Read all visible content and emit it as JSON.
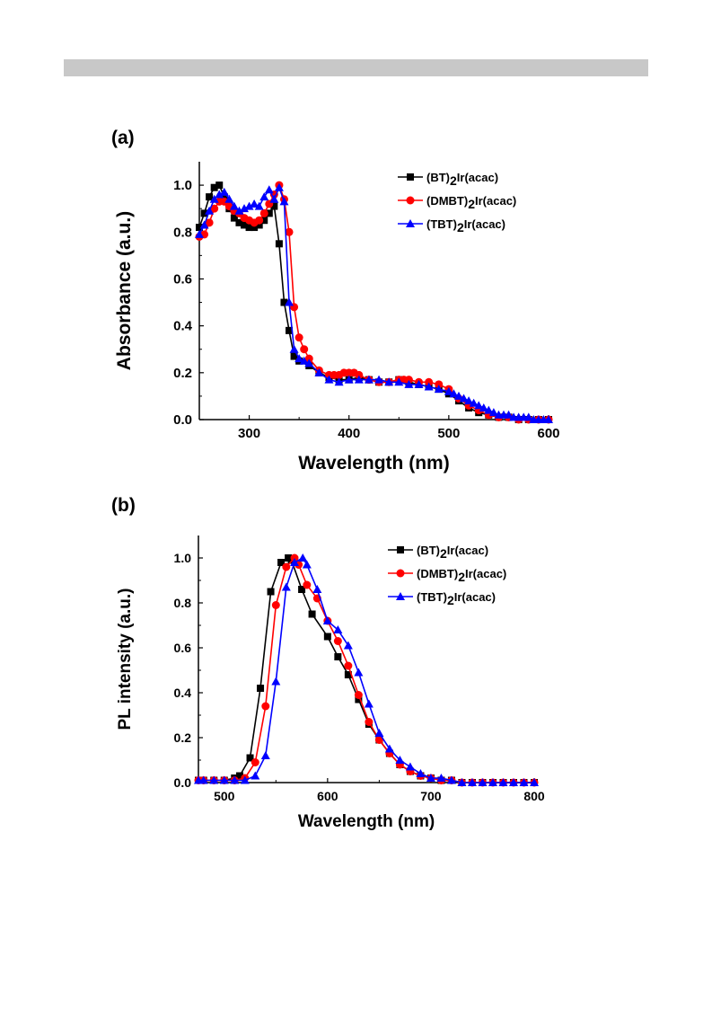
{
  "panels": [
    {
      "label": "(a)",
      "chart_data": {
        "type": "line",
        "xlabel": "Wavelength (nm)",
        "ylabel": "Absorbance (a.u.)",
        "xlim": [
          250,
          600
        ],
        "ylim": [
          0.0,
          1.1
        ],
        "xticks": [
          300,
          400,
          500,
          600
        ],
        "yticks": [
          0.0,
          0.2,
          0.4,
          0.6,
          0.8,
          1.0
        ],
        "xtick_labels": [
          "300",
          "400",
          "500",
          "600"
        ],
        "ytick_labels": [
          "0.0",
          "0.2",
          "0.4",
          "0.6",
          "0.8",
          "1.0"
        ],
        "grid": false,
        "legend": "top-right",
        "series": [
          {
            "name_prefix": "(BT)",
            "name_sub": "2",
            "name_suffix": "Ir(acac)",
            "color": "#000000",
            "marker": "square",
            "x": [
              250,
              255,
              260,
              265,
              270,
              275,
              280,
              285,
              290,
              295,
              300,
              305,
              310,
              315,
              320,
              325,
              330,
              335,
              340,
              345,
              350,
              360,
              370,
              380,
              390,
              400,
              410,
              420,
              430,
              440,
              450,
              460,
              470,
              480,
              490,
              500,
              510,
              520,
              530,
              540,
              550,
              560,
              570,
              580,
              590,
              600
            ],
            "y": [
              0.82,
              0.88,
              0.95,
              0.99,
              1.0,
              0.95,
              0.9,
              0.86,
              0.84,
              0.83,
              0.82,
              0.82,
              0.83,
              0.85,
              0.88,
              0.91,
              0.75,
              0.5,
              0.38,
              0.27,
              0.25,
              0.23,
              0.2,
              0.18,
              0.17,
              0.17,
              0.18,
              0.17,
              0.16,
              0.16,
              0.17,
              0.16,
              0.15,
              0.14,
              0.13,
              0.11,
              0.08,
              0.05,
              0.03,
              0.02,
              0.01,
              0.01,
              0.0,
              0.0,
              0.0,
              0.0
            ]
          },
          {
            "name_prefix": "(DMBT)",
            "name_sub": "2",
            "name_suffix": "Ir(acac)",
            "color": "#ff0000",
            "marker": "circle",
            "x": [
              250,
              255,
              260,
              265,
              270,
              275,
              280,
              285,
              290,
              295,
              300,
              305,
              310,
              315,
              320,
              325,
              330,
              335,
              340,
              345,
              350,
              355,
              360,
              370,
              380,
              385,
              390,
              395,
              400,
              405,
              410,
              420,
              430,
              440,
              450,
              455,
              460,
              470,
              480,
              490,
              500,
              510,
              520,
              530,
              540,
              550,
              560,
              570,
              580,
              590,
              600
            ],
            "y": [
              0.78,
              0.79,
              0.84,
              0.9,
              0.93,
              0.93,
              0.91,
              0.89,
              0.88,
              0.86,
              0.85,
              0.84,
              0.85,
              0.88,
              0.92,
              0.96,
              1.0,
              0.94,
              0.8,
              0.48,
              0.35,
              0.3,
              0.26,
              0.21,
              0.19,
              0.19,
              0.19,
              0.2,
              0.2,
              0.2,
              0.19,
              0.17,
              0.16,
              0.16,
              0.17,
              0.17,
              0.17,
              0.16,
              0.16,
              0.15,
              0.13,
              0.09,
              0.06,
              0.04,
              0.02,
              0.01,
              0.01,
              0.0,
              0.0,
              0.0,
              0.0
            ]
          },
          {
            "name_prefix": "(TBT)",
            "name_sub": "2",
            "name_suffix": "Ir(acac)",
            "color": "#0000ff",
            "marker": "triangle",
            "x": [
              250,
              255,
              260,
              265,
              270,
              275,
              280,
              285,
              290,
              295,
              300,
              305,
              310,
              315,
              320,
              325,
              330,
              335,
              340,
              345,
              350,
              355,
              360,
              370,
              380,
              390,
              400,
              410,
              420,
              430,
              440,
              450,
              460,
              470,
              480,
              490,
              500,
              505,
              510,
              515,
              520,
              525,
              530,
              535,
              540,
              545,
              550,
              555,
              560,
              565,
              570,
              575,
              580,
              585,
              590,
              595,
              600
            ],
            "y": [
              0.79,
              0.83,
              0.89,
              0.94,
              0.96,
              0.97,
              0.94,
              0.91,
              0.89,
              0.9,
              0.91,
              0.92,
              0.91,
              0.95,
              0.98,
              0.94,
              0.99,
              0.93,
              0.5,
              0.3,
              0.26,
              0.25,
              0.24,
              0.2,
              0.17,
              0.16,
              0.17,
              0.17,
              0.17,
              0.17,
              0.16,
              0.16,
              0.15,
              0.15,
              0.14,
              0.13,
              0.12,
              0.11,
              0.1,
              0.09,
              0.08,
              0.07,
              0.06,
              0.05,
              0.04,
              0.03,
              0.02,
              0.02,
              0.02,
              0.01,
              0.01,
              0.01,
              0.01,
              0.0,
              0.0,
              0.0,
              0.0
            ]
          }
        ]
      }
    },
    {
      "label": "(b)",
      "chart_data": {
        "type": "line",
        "xlabel": "Wavelength (nm)",
        "ylabel": "PL intensity (a.u.)",
        "xlim": [
          475,
          800
        ],
        "ylim": [
          0.0,
          1.1
        ],
        "xticks": [
          500,
          600,
          700,
          800
        ],
        "yticks": [
          0.0,
          0.2,
          0.4,
          0.6,
          0.8,
          1.0
        ],
        "xtick_labels": [
          "500",
          "600",
          "700",
          "800"
        ],
        "ytick_labels": [
          "0.0",
          "0.2",
          "0.4",
          "0.6",
          "0.8",
          "1.0"
        ],
        "grid": false,
        "legend": "top-right",
        "series": [
          {
            "name_prefix": "(BT)",
            "name_sub": "2",
            "name_suffix": "Ir(acac)",
            "color": "#000000",
            "marker": "square",
            "x": [
              475,
              480,
              490,
              500,
              510,
              515,
              525,
              535,
              545,
              555,
              562,
              565,
              575,
              585,
              600,
              610,
              620,
              630,
              640,
              650,
              660,
              670,
              680,
              690,
              700,
              710,
              720,
              730,
              740,
              750,
              760,
              770,
              780,
              790,
              800
            ],
            "y": [
              0.01,
              0.01,
              0.01,
              0.01,
              0.02,
              0.03,
              0.11,
              0.42,
              0.85,
              0.98,
              1.0,
              0.99,
              0.86,
              0.75,
              0.65,
              0.56,
              0.48,
              0.37,
              0.26,
              0.19,
              0.13,
              0.08,
              0.05,
              0.03,
              0.02,
              0.01,
              0.01,
              0.0,
              0.0,
              0.0,
              0.0,
              0.0,
              0.0,
              0.0,
              0.0
            ]
          },
          {
            "name_prefix": "(DMBT)",
            "name_sub": "2",
            "name_suffix": "Ir(acac)",
            "color": "#ff0000",
            "marker": "circle",
            "x": [
              475,
              480,
              490,
              500,
              510,
              520,
              530,
              540,
              550,
              560,
              568,
              572,
              580,
              590,
              600,
              610,
              620,
              630,
              640,
              650,
              660,
              670,
              680,
              690,
              700,
              710,
              720,
              730,
              740,
              750,
              760,
              770,
              780,
              790,
              800
            ],
            "y": [
              0.01,
              0.01,
              0.01,
              0.01,
              0.01,
              0.02,
              0.09,
              0.34,
              0.79,
              0.96,
              1.0,
              0.97,
              0.88,
              0.82,
              0.72,
              0.63,
              0.52,
              0.39,
              0.27,
              0.19,
              0.13,
              0.08,
              0.05,
              0.03,
              0.02,
              0.01,
              0.01,
              0.0,
              0.0,
              0.0,
              0.0,
              0.0,
              0.0,
              0.0,
              0.0
            ]
          },
          {
            "name_prefix": "(TBT)",
            "name_sub": "2",
            "name_suffix": "Ir(acac)",
            "color": "#0000ff",
            "marker": "triangle",
            "x": [
              475,
              480,
              490,
              500,
              510,
              520,
              530,
              540,
              550,
              560,
              568,
              576,
              580,
              590,
              600,
              610,
              620,
              630,
              640,
              650,
              660,
              670,
              680,
              690,
              700,
              710,
              720,
              730,
              740,
              750,
              760,
              770,
              780,
              790,
              800
            ],
            "y": [
              0.01,
              0.01,
              0.01,
              0.01,
              0.01,
              0.01,
              0.03,
              0.12,
              0.45,
              0.87,
              0.98,
              1.0,
              0.97,
              0.86,
              0.72,
              0.68,
              0.61,
              0.49,
              0.35,
              0.22,
              0.15,
              0.1,
              0.07,
              0.04,
              0.02,
              0.02,
              0.01,
              0.0,
              0.0,
              0.0,
              0.0,
              0.0,
              0.0,
              0.0,
              0.0
            ]
          }
        ]
      }
    }
  ]
}
